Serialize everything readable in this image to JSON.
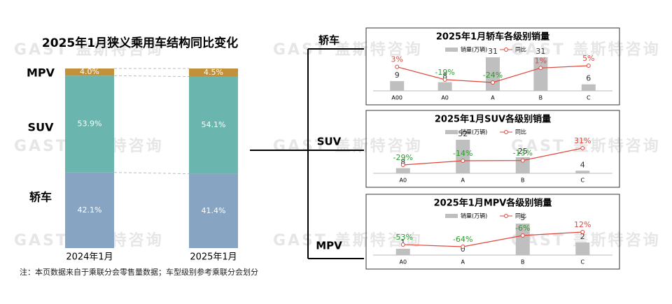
{
  "watermark": "GAST 盖斯特咨询",
  "note": "注：本页数据来自于乘联分会零售量数据；车型级别参考乘联分会划分",
  "chart_data": [
    {
      "type": "stacked_bar",
      "title": "2025年1月狭义乘用车结构同比变化",
      "categories": [
        "2024年1月",
        "2025年1月"
      ],
      "series": [
        {
          "name": "轿车",
          "color": "#87a4c2",
          "values": [
            42.1,
            41.4
          ],
          "value_labels": [
            "42.1%",
            "41.4%"
          ]
        },
        {
          "name": "SUV",
          "color": "#6ab6ae",
          "values": [
            53.9,
            54.1
          ],
          "value_labels": [
            "53.9%",
            "54.1%"
          ]
        },
        {
          "name": "MPV",
          "color": "#c0903a",
          "values": [
            4.0,
            4.5
          ],
          "value_labels": [
            "4.0%",
            "4.5%"
          ]
        }
      ]
    },
    {
      "type": "combo",
      "title": "2025年1月轿车各级别销量",
      "categories": [
        "A00",
        "A0",
        "A",
        "B",
        "C"
      ],
      "series": [
        {
          "name": "销量(万辆)",
          "color": "#bfbfbf",
          "values": [
            9,
            8,
            31,
            31,
            6
          ]
        },
        {
          "name": "同比",
          "color": "#e0463c",
          "axis": "y2",
          "values": [
            3,
            -19,
            -24,
            1,
            5
          ],
          "value_labels": [
            "3%",
            "-19%",
            "-24%",
            "1%",
            "5%"
          ]
        }
      ]
    },
    {
      "type": "combo",
      "title": "2025年1月SUV各级别销量",
      "categories": [
        "A0",
        "A",
        "B",
        "C"
      ],
      "series": [
        {
          "name": "销量(万辆)",
          "color": "#bfbfbf",
          "values": [
            8,
            52,
            25,
            4
          ]
        },
        {
          "name": "同比",
          "color": "#e0463c",
          "axis": "y2",
          "values": [
            -29,
            -14,
            -13,
            31
          ],
          "value_labels": [
            "-29%",
            "-14%",
            "-13%",
            "31%"
          ]
        }
      ]
    },
    {
      "type": "combo",
      "title": "2025年1月MPV各级别销量",
      "categories": [
        "A0",
        "A",
        "B",
        "C"
      ],
      "series": [
        {
          "name": "销量(万辆)",
          "color": "#bfbfbf",
          "values": [
            1,
            0,
            5,
            2
          ]
        },
        {
          "name": "同比",
          "color": "#e0463c",
          "axis": "y2",
          "values": [
            -53,
            -64,
            -6,
            12
          ],
          "value_labels": [
            "-53%",
            "-64%",
            "-6%",
            "12%"
          ]
        }
      ]
    }
  ]
}
